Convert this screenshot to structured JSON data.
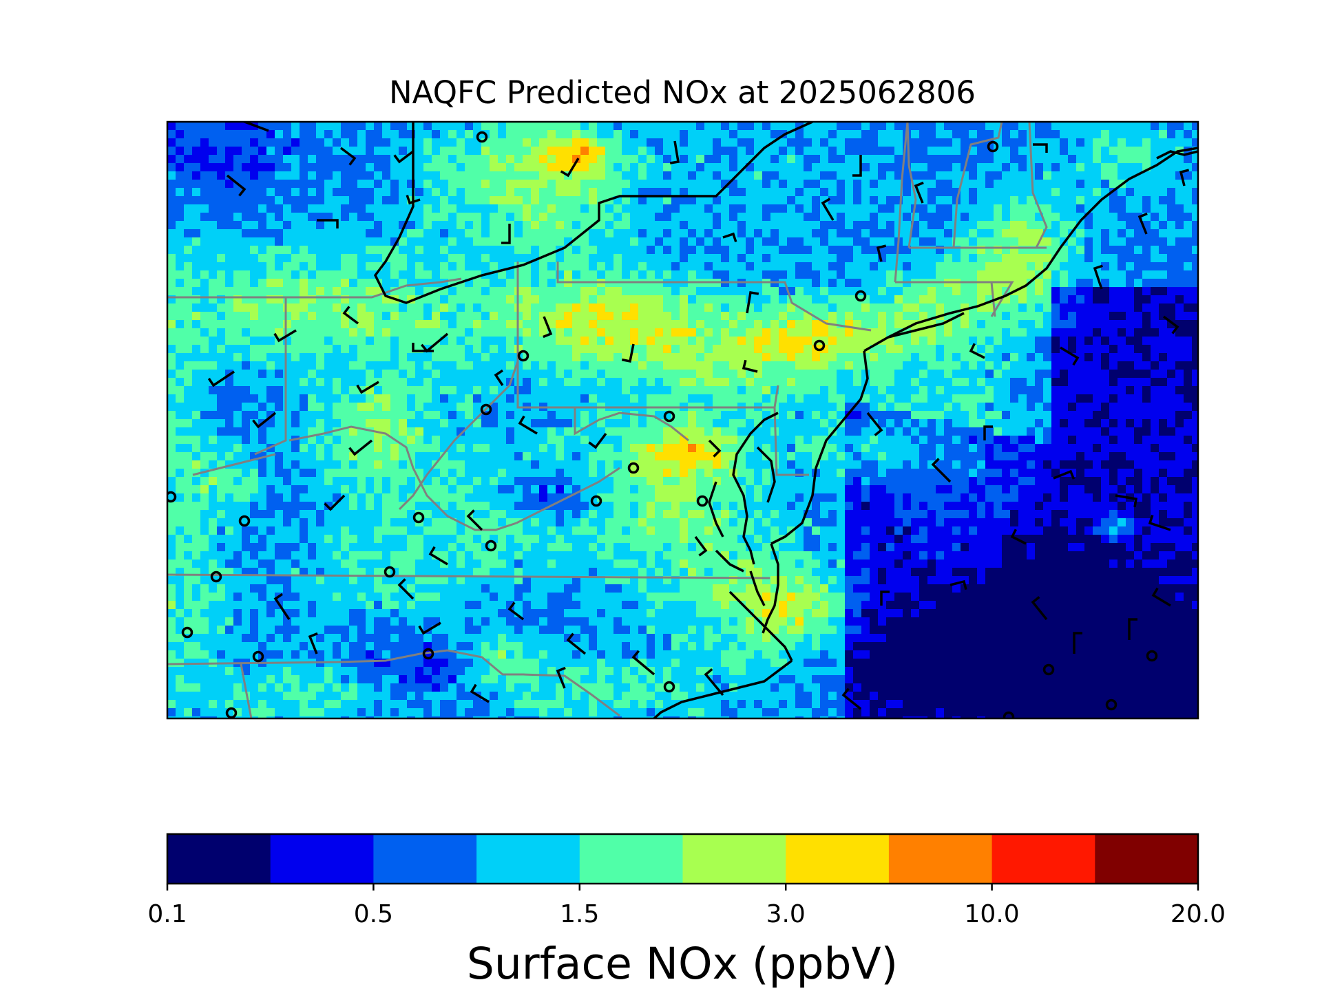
{
  "title": "NAQFC Predicted NOx at 2025062806",
  "colorbar": {
    "label": "Surface NOx (ppbV)",
    "levels": [
      0.1,
      0.2,
      0.5,
      1.0,
      1.5,
      2.0,
      3.0,
      5.0,
      10.0,
      15.0,
      20.0
    ],
    "colors": [
      "#00006e",
      "#0000ee",
      "#0060f0",
      "#00d0f8",
      "#50ffa8",
      "#a8ff50",
      "#ffe000",
      "#ff8000",
      "#ff1800",
      "#800000"
    ],
    "tick_labels": [
      "0.1",
      "0.5",
      "1.5",
      "3.0",
      "10.0",
      "20.0"
    ]
  },
  "map": {
    "region": "Mid-Atlantic / Northeast United States",
    "field": "NOx concentration (filled raster)",
    "overlays": [
      "state-boundaries",
      "coastlines",
      "wind-barbs",
      "monitor-site-circles"
    ]
  }
}
